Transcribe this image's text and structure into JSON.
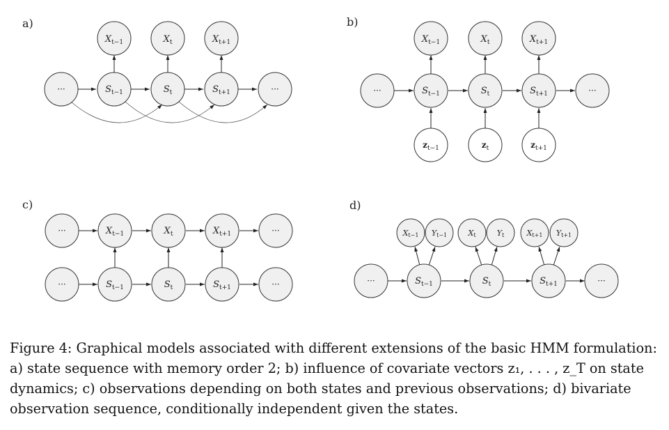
{
  "panels": [
    {
      "label": "a)",
      "observations": [
        {
          "base": "X",
          "sub": "t−1"
        },
        {
          "base": "X",
          "sub": "t"
        },
        {
          "base": "X",
          "sub": "t+1"
        }
      ],
      "states": [
        {
          "base": "···"
        },
        {
          "base": "S",
          "sub": "t−1"
        },
        {
          "base": "S",
          "sub": "t"
        },
        {
          "base": "S",
          "sub": "t+1"
        },
        {
          "base": "···"
        }
      ]
    },
    {
      "label": "b)",
      "observations": [
        {
          "base": "X",
          "sub": "t−1"
        },
        {
          "base": "X",
          "sub": "t"
        },
        {
          "base": "X",
          "sub": "t+1"
        }
      ],
      "states": [
        {
          "base": "···"
        },
        {
          "base": "S",
          "sub": "t−1"
        },
        {
          "base": "S",
          "sub": "t"
        },
        {
          "base": "S",
          "sub": "t+1"
        },
        {
          "base": "···"
        }
      ],
      "covariates": [
        {
          "base": "z",
          "sub": "t−1"
        },
        {
          "base": "z",
          "sub": "t"
        },
        {
          "base": "z",
          "sub": "t+1"
        }
      ]
    },
    {
      "label": "c)",
      "observations": [
        {
          "base": "···"
        },
        {
          "base": "X",
          "sub": "t−1"
        },
        {
          "base": "X",
          "sub": "t"
        },
        {
          "base": "X",
          "sub": "t+1"
        },
        {
          "base": "···"
        }
      ],
      "states": [
        {
          "base": "···"
        },
        {
          "base": "S",
          "sub": "t−1"
        },
        {
          "base": "S",
          "sub": "t"
        },
        {
          "base": "S",
          "sub": "t+1"
        },
        {
          "base": "···"
        }
      ]
    },
    {
      "label": "d)",
      "observations": [
        {
          "base": "X",
          "sub": "t−1"
        },
        {
          "base": "Y",
          "sub": "t−1"
        },
        {
          "base": "X",
          "sub": "t"
        },
        {
          "base": "Y",
          "sub": "t"
        },
        {
          "base": "X",
          "sub": "t+1"
        },
        {
          "base": "Y",
          "sub": "t+1"
        }
      ],
      "states": [
        {
          "base": "···"
        },
        {
          "base": "S",
          "sub": "t−1"
        },
        {
          "base": "S",
          "sub": "t"
        },
        {
          "base": "S",
          "sub": "t+1"
        },
        {
          "base": "···"
        }
      ]
    }
  ],
  "caption": {
    "lines": [
      "Figure 4: Graphical models associated with different extensions of the basic HMM formulation:",
      "a) state sequence with memory order 2; b) influence of covariate vectors z₁, . . . , z_T on state",
      "dynamics; c) observations depending on both states and previous observations; d) bivariate",
      "observation sequence, conditionally independent given the states."
    ]
  }
}
